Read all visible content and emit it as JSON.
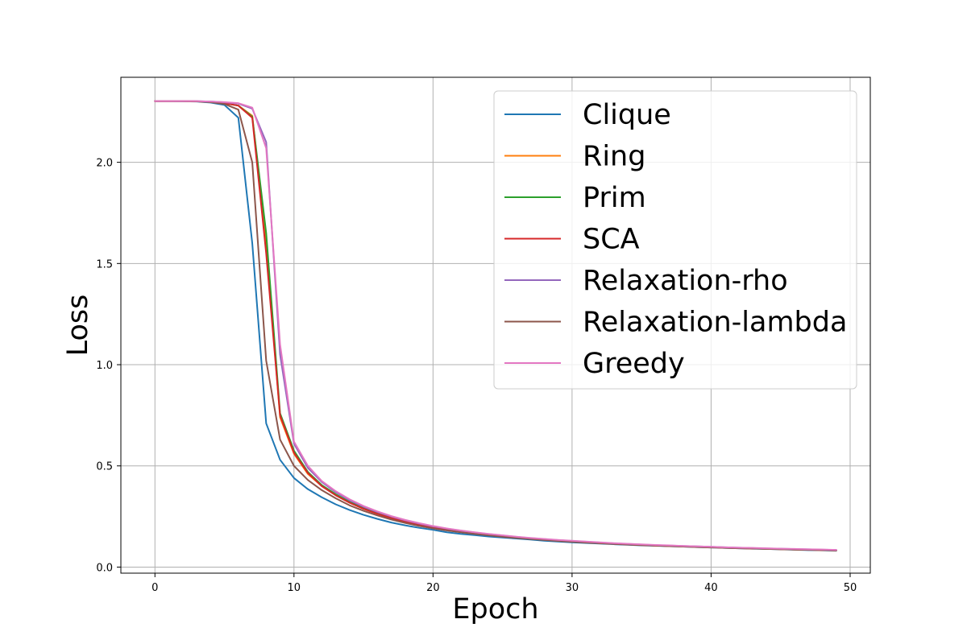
{
  "chart_data": {
    "type": "line",
    "title": "",
    "xlabel": "Epoch",
    "ylabel": "Loss",
    "xlim": [
      -2.45,
      51.45
    ],
    "ylim": [
      -0.03,
      2.42
    ],
    "xticks": [
      0,
      10,
      20,
      30,
      40,
      50
    ],
    "yticks": [
      0.0,
      0.5,
      1.0,
      1.5,
      2.0
    ],
    "xtick_labels": [
      "0",
      "10",
      "20",
      "30",
      "40",
      "50"
    ],
    "ytick_labels": [
      "0.0",
      "0.5",
      "1.0",
      "1.5",
      "2.0"
    ],
    "grid": true,
    "legend_position": "upper-right",
    "series": [
      {
        "name": "Clique",
        "color": "#1f77b4",
        "x": [
          0,
          1,
          2,
          3,
          4,
          5,
          6,
          7,
          8,
          9,
          10,
          11,
          12,
          13,
          14,
          15,
          16,
          17,
          18,
          19,
          20,
          21,
          22,
          23,
          24,
          25,
          26,
          27,
          28,
          29,
          30,
          31,
          32,
          33,
          34,
          35,
          36,
          37,
          38,
          39,
          40,
          41,
          42,
          43,
          44,
          45,
          46,
          47,
          48,
          49
        ],
        "y": [
          2.302,
          2.302,
          2.301,
          2.3,
          2.295,
          2.283,
          2.22,
          1.6,
          0.71,
          0.53,
          0.44,
          0.385,
          0.345,
          0.31,
          0.282,
          0.258,
          0.238,
          0.22,
          0.206,
          0.194,
          0.184,
          0.172,
          0.164,
          0.158,
          0.151,
          0.146,
          0.141,
          0.136,
          0.13,
          0.126,
          0.122,
          0.119,
          0.116,
          0.113,
          0.11,
          0.107,
          0.105,
          0.103,
          0.101,
          0.099,
          0.097,
          0.095,
          0.093,
          0.091,
          0.09,
          0.088,
          0.086,
          0.084,
          0.083,
          0.081
        ]
      },
      {
        "name": "Ring",
        "color": "#ff7f0e",
        "x": [
          0,
          1,
          2,
          3,
          4,
          5,
          6,
          7,
          8,
          9,
          10,
          11,
          12,
          13,
          14,
          15,
          16,
          17,
          18,
          19,
          20,
          21,
          22,
          23,
          24,
          25,
          26,
          27,
          28,
          29,
          30,
          31,
          32,
          33,
          34,
          35,
          36,
          37,
          38,
          39,
          40,
          41,
          42,
          43,
          44,
          45,
          46,
          47,
          48,
          49
        ],
        "y": [
          2.302,
          2.302,
          2.302,
          2.301,
          2.298,
          2.292,
          2.28,
          2.23,
          1.6,
          0.74,
          0.56,
          0.46,
          0.4,
          0.355,
          0.318,
          0.288,
          0.263,
          0.242,
          0.224,
          0.208,
          0.195,
          0.184,
          0.175,
          0.167,
          0.159,
          0.152,
          0.146,
          0.14,
          0.135,
          0.13,
          0.126,
          0.122,
          0.118,
          0.115,
          0.112,
          0.109,
          0.106,
          0.104,
          0.102,
          0.1,
          0.098,
          0.096,
          0.094,
          0.092,
          0.091,
          0.089,
          0.087,
          0.086,
          0.084,
          0.083
        ]
      },
      {
        "name": "Prim",
        "color": "#2ca02c",
        "x": [
          0,
          1,
          2,
          3,
          4,
          5,
          6,
          7,
          8,
          9,
          10,
          11,
          12,
          13,
          14,
          15,
          16,
          17,
          18,
          19,
          20,
          21,
          22,
          23,
          24,
          25,
          26,
          27,
          28,
          29,
          30,
          31,
          32,
          33,
          34,
          35,
          36,
          37,
          38,
          39,
          40,
          41,
          42,
          43,
          44,
          45,
          46,
          47,
          48,
          49
        ],
        "y": [
          2.302,
          2.302,
          2.302,
          2.301,
          2.298,
          2.292,
          2.28,
          2.225,
          1.65,
          0.76,
          0.575,
          0.47,
          0.405,
          0.36,
          0.322,
          0.292,
          0.266,
          0.245,
          0.226,
          0.21,
          0.197,
          0.186,
          0.177,
          0.168,
          0.16,
          0.153,
          0.147,
          0.141,
          0.136,
          0.131,
          0.127,
          0.123,
          0.119,
          0.116,
          0.113,
          0.11,
          0.107,
          0.105,
          0.103,
          0.101,
          0.099,
          0.097,
          0.095,
          0.093,
          0.091,
          0.09,
          0.088,
          0.086,
          0.085,
          0.084
        ]
      },
      {
        "name": "SCA",
        "color": "#d62728",
        "x": [
          0,
          1,
          2,
          3,
          4,
          5,
          6,
          7,
          8,
          9,
          10,
          11,
          12,
          13,
          14,
          15,
          16,
          17,
          18,
          19,
          20,
          21,
          22,
          23,
          24,
          25,
          26,
          27,
          28,
          29,
          30,
          31,
          32,
          33,
          34,
          35,
          36,
          37,
          38,
          39,
          40,
          41,
          42,
          43,
          44,
          45,
          46,
          47,
          48,
          49
        ],
        "y": [
          2.302,
          2.302,
          2.302,
          2.301,
          2.298,
          2.292,
          2.28,
          2.22,
          1.55,
          0.75,
          0.565,
          0.465,
          0.4,
          0.355,
          0.318,
          0.288,
          0.263,
          0.242,
          0.224,
          0.208,
          0.195,
          0.184,
          0.175,
          0.167,
          0.159,
          0.152,
          0.146,
          0.14,
          0.135,
          0.13,
          0.126,
          0.122,
          0.118,
          0.115,
          0.112,
          0.109,
          0.106,
          0.104,
          0.102,
          0.1,
          0.098,
          0.096,
          0.094,
          0.092,
          0.091,
          0.089,
          0.087,
          0.086,
          0.084,
          0.083
        ]
      },
      {
        "name": "Relaxation-rho",
        "color": "#9467bd",
        "x": [
          0,
          1,
          2,
          3,
          4,
          5,
          6,
          7,
          8,
          9,
          10,
          11,
          12,
          13,
          14,
          15,
          16,
          17,
          18,
          19,
          20,
          21,
          22,
          23,
          24,
          25,
          26,
          27,
          28,
          29,
          30,
          31,
          32,
          33,
          34,
          35,
          36,
          37,
          38,
          39,
          40,
          41,
          42,
          43,
          44,
          45,
          46,
          47,
          48,
          49
        ],
        "y": [
          2.302,
          2.302,
          2.302,
          2.302,
          2.3,
          2.296,
          2.29,
          2.265,
          2.1,
          1.05,
          0.61,
          0.49,
          0.42,
          0.37,
          0.33,
          0.298,
          0.272,
          0.25,
          0.231,
          0.215,
          0.201,
          0.19,
          0.18,
          0.171,
          0.163,
          0.156,
          0.149,
          0.143,
          0.138,
          0.133,
          0.129,
          0.125,
          0.121,
          0.117,
          0.114,
          0.111,
          0.108,
          0.106,
          0.104,
          0.102,
          0.1,
          0.098,
          0.096,
          0.094,
          0.092,
          0.091,
          0.089,
          0.088,
          0.086,
          0.085
        ]
      },
      {
        "name": "Relaxation-lambda",
        "color": "#8c564b",
        "x": [
          0,
          1,
          2,
          3,
          4,
          5,
          6,
          7,
          8,
          9,
          10,
          11,
          12,
          13,
          14,
          15,
          16,
          17,
          18,
          19,
          20,
          21,
          22,
          23,
          24,
          25,
          26,
          27,
          28,
          29,
          30,
          31,
          32,
          33,
          34,
          35,
          36,
          37,
          38,
          39,
          40,
          41,
          42,
          43,
          44,
          45,
          46,
          47,
          48,
          49
        ],
        "y": [
          2.302,
          2.302,
          2.302,
          2.301,
          2.297,
          2.288,
          2.26,
          2.0,
          1.02,
          0.63,
          0.5,
          0.43,
          0.38,
          0.34,
          0.305,
          0.278,
          0.255,
          0.235,
          0.218,
          0.203,
          0.191,
          0.181,
          0.172,
          0.164,
          0.157,
          0.15,
          0.144,
          0.139,
          0.134,
          0.129,
          0.125,
          0.121,
          0.118,
          0.114,
          0.111,
          0.108,
          0.106,
          0.103,
          0.101,
          0.099,
          0.097,
          0.095,
          0.093,
          0.092,
          0.09,
          0.088,
          0.087,
          0.085,
          0.084,
          0.082
        ]
      },
      {
        "name": "Greedy",
        "color": "#e377c2",
        "x": [
          0,
          1,
          2,
          3,
          4,
          5,
          6,
          7,
          8,
          9,
          10,
          11,
          12,
          13,
          14,
          15,
          16,
          17,
          18,
          19,
          20,
          21,
          22,
          23,
          24,
          25,
          26,
          27,
          28,
          29,
          30,
          31,
          32,
          33,
          34,
          35,
          36,
          37,
          38,
          39,
          40,
          41,
          42,
          43,
          44,
          45,
          46,
          47,
          48,
          49
        ],
        "y": [
          2.302,
          2.302,
          2.302,
          2.302,
          2.3,
          2.297,
          2.292,
          2.27,
          2.07,
          1.1,
          0.62,
          0.5,
          0.425,
          0.375,
          0.335,
          0.302,
          0.275,
          0.252,
          0.233,
          0.217,
          0.203,
          0.191,
          0.181,
          0.172,
          0.164,
          0.157,
          0.15,
          0.144,
          0.139,
          0.134,
          0.13,
          0.126,
          0.122,
          0.118,
          0.115,
          0.112,
          0.109,
          0.107,
          0.104,
          0.102,
          0.1,
          0.098,
          0.096,
          0.095,
          0.093,
          0.091,
          0.09,
          0.088,
          0.087,
          0.085
        ]
      }
    ]
  }
}
